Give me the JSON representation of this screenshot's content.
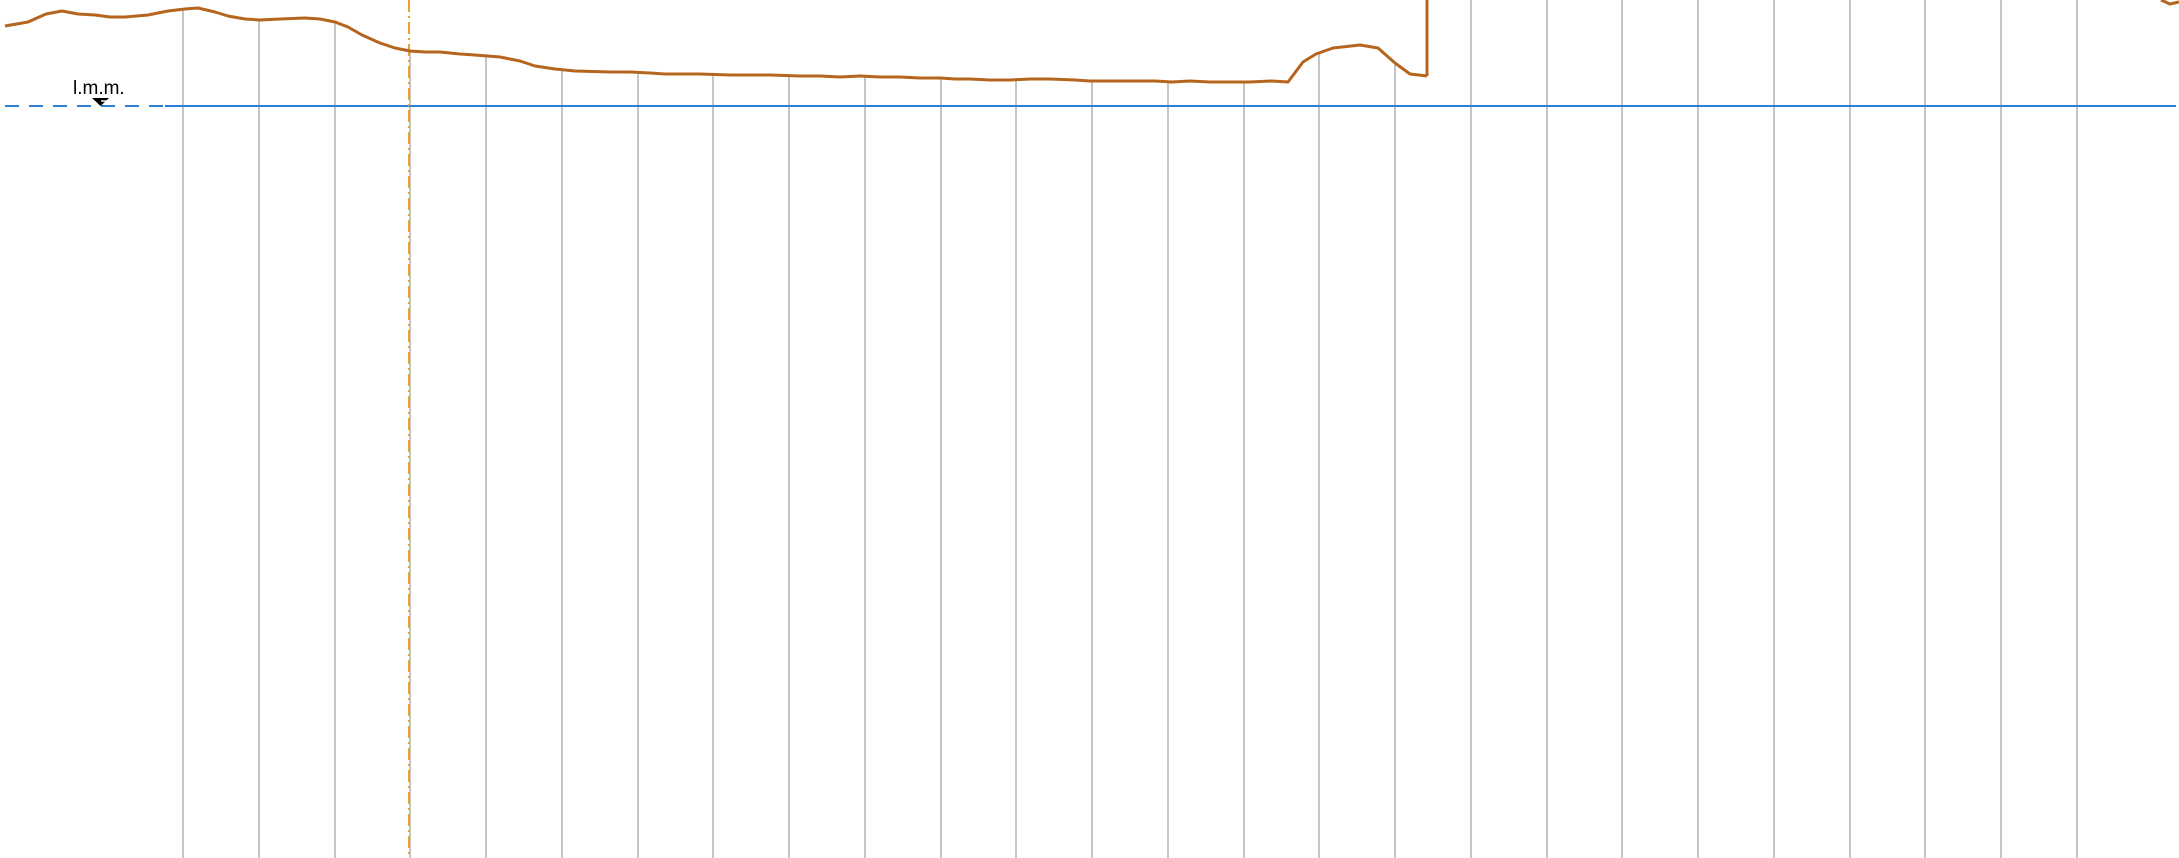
{
  "sea_level": {
    "label": "l.m.m."
  },
  "colors": {
    "background": "#ffffff",
    "grid_line": "#8c8c8c",
    "sea_level_line": "#2b7fd9",
    "terrain_profile": "#b5651d",
    "reference_axis": "#f0a030",
    "label_text": "#000000"
  },
  "icons": {
    "sea_level_marker": "inverted-triangle-water-level-icon"
  }
}
